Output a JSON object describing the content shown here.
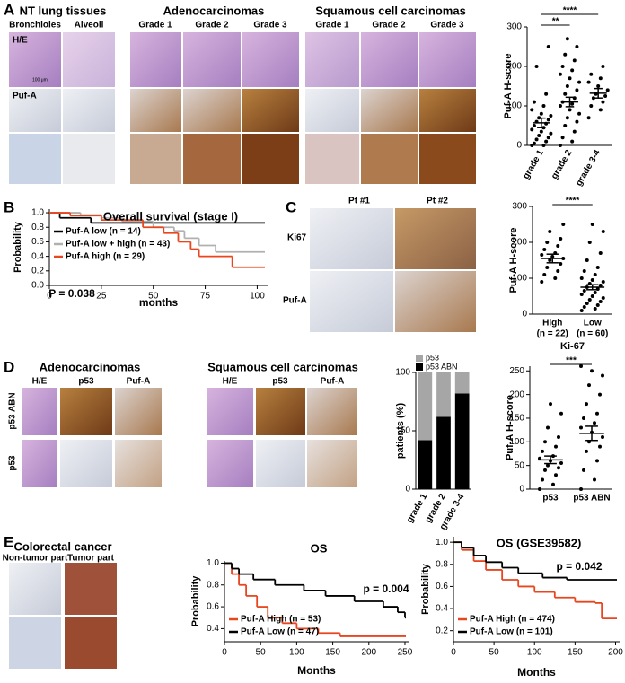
{
  "panel_labels": [
    "A",
    "B",
    "C",
    "D",
    "E"
  ],
  "panel_a": {
    "groups": [
      "NT lung tissues",
      "Adenocarcinomas",
      "Squamous cell carcinomas"
    ],
    "columns": [
      "Bronchioles",
      "Alveoli",
      "Grade 1",
      "Grade 2",
      "Grade 3",
      "Grade 1",
      "Grade 2",
      "Grade 3"
    ],
    "rows": [
      "H/E",
      "Puf-A"
    ],
    "scale_bar": "100 μm"
  },
  "panel_c": {
    "columns": [
      "Pt #1",
      "Pt #2"
    ],
    "rows": [
      "Ki67",
      "Puf-A"
    ]
  },
  "panel_d": {
    "groups": [
      "Adenocarcinomas",
      "Squamous cell carcinomas"
    ],
    "columns": [
      "H/E",
      "p53",
      "Puf-A",
      "H/E",
      "p53",
      "Puf-A"
    ],
    "rows": [
      "p53 ABN",
      "p53"
    ]
  },
  "panel_e": {
    "title": "Colorectal cancer",
    "columns": [
      "Non-tumor part",
      "Tumor part"
    ]
  },
  "chart_data": [
    {
      "type": "dotplot",
      "ylabel": "Puf-A H-score",
      "categories": [
        "grade 1",
        "grade 2",
        "grade 3-4"
      ],
      "points": [
        [
          0,
          0,
          5,
          10,
          15,
          20,
          25,
          30,
          35,
          40,
          45,
          50,
          55,
          60,
          65,
          70,
          75,
          80,
          90,
          100,
          110,
          130,
          200,
          250
        ],
        [
          0,
          10,
          20,
          35,
          50,
          60,
          70,
          80,
          90,
          100,
          105,
          110,
          120,
          130,
          140,
          150,
          160,
          170,
          180,
          190,
          200,
          215,
          230,
          250,
          270
        ],
        [
          70,
          90,
          100,
          110,
          120,
          125,
          130,
          140,
          150,
          160,
          170,
          180,
          200
        ]
      ],
      "means": [
        57,
        110,
        132
      ],
      "errors": [
        12,
        12,
        12
      ],
      "ylim": [
        0,
        300
      ],
      "yticks": [
        0,
        100,
        200,
        300
      ],
      "significance": [
        "**",
        "****"
      ],
      "color": "#000000"
    },
    {
      "type": "survival",
      "title": "Overall survival (stage I)",
      "xlabel": "months",
      "ylabel": "Probability",
      "annotation": "P = 0.038",
      "xlim": [
        0,
        105
      ],
      "xticks": [
        0,
        25,
        50,
        75,
        100
      ],
      "ylim": [
        0,
        1.05
      ],
      "yticks": [
        {
          "value": 0,
          "label": "0.0"
        },
        0.2,
        0.4,
        0.6,
        0.8,
        {
          "value": 1,
          "label": "1.0"
        }
      ],
      "series": [
        {
          "name": "Puf-A low (n = 14)",
          "color": "#000000",
          "x": [
            0,
            5,
            20
          ],
          "values": [
            1,
            0.93,
            0.86
          ]
        },
        {
          "name": "Puf-A low + high (n = 43)",
          "color": "#b0b0b0",
          "x": [
            0,
            15,
            25,
            35,
            50,
            60,
            65,
            72,
            80
          ],
          "values": [
            1,
            0.97,
            0.93,
            0.88,
            0.8,
            0.75,
            0.65,
            0.55,
            0.46
          ]
        },
        {
          "name": "Puf-A high (n = 29)",
          "color": "#e8461e",
          "x": [
            0,
            10,
            25,
            45,
            55,
            62,
            68,
            72,
            88
          ],
          "values": [
            1,
            0.96,
            0.9,
            0.8,
            0.72,
            0.6,
            0.5,
            0.4,
            0.25
          ]
        }
      ]
    },
    {
      "type": "dotplot",
      "ylabel": "Puf-A H-score",
      "xlabel": "Ki-67",
      "categories": [
        "High",
        "Low"
      ],
      "category_counts": [
        "(n = 22)",
        "(n = 60)"
      ],
      "points": [
        [
          90,
          100,
          110,
          120,
          130,
          140,
          150,
          155,
          160,
          165,
          170,
          180,
          190,
          200,
          210,
          230,
          250
        ],
        [
          10,
          15,
          20,
          25,
          30,
          35,
          40,
          45,
          50,
          55,
          60,
          65,
          70,
          75,
          80,
          85,
          90,
          95,
          100,
          110,
          120,
          130,
          150,
          170,
          200,
          230,
          250
        ]
      ],
      "means": [
        155,
        75
      ],
      "errors": [
        12,
        7
      ],
      "ylim": [
        0,
        300
      ],
      "yticks": [
        0,
        100,
        200,
        300
      ],
      "significance": [
        "****"
      ],
      "color": "#000000"
    },
    {
      "type": "stacked_bar",
      "ylabel": "patients (%)",
      "categories": [
        "grade 1",
        "grade 2",
        "grade 3-4"
      ],
      "ylim": [
        0,
        100
      ],
      "yticks": [
        0,
        50,
        100
      ],
      "series": [
        {
          "name": "p53 ABN",
          "color": "#000000",
          "values": [
            42,
            62,
            82
          ]
        },
        {
          "name": "p53",
          "color": "#a6a6a6",
          "values": [
            58,
            38,
            18
          ]
        }
      ]
    },
    {
      "type": "dotplot",
      "ylabel": "Puf-A H-score",
      "categories": [
        "p53",
        "p53 ABN"
      ],
      "points": [
        [
          0,
          10,
          20,
          30,
          40,
          45,
          50,
          55,
          60,
          65,
          70,
          80,
          90,
          100,
          110,
          130,
          160,
          180
        ],
        [
          0,
          20,
          40,
          60,
          80,
          90,
          100,
          110,
          120,
          130,
          140,
          150,
          160,
          180,
          200,
          220,
          240,
          250,
          260
        ]
      ],
      "means": [
        62,
        118
      ],
      "errors": [
        8,
        15
      ],
      "ylim": [
        0,
        260
      ],
      "yticks": [
        0,
        50,
        100,
        150,
        200,
        250
      ],
      "significance": [
        "***"
      ],
      "color": "#000000"
    },
    {
      "type": "survival",
      "title": "OS",
      "xlabel": "Months",
      "ylabel": "Probability",
      "annotation": "p = 0.004",
      "xlim": [
        0,
        255
      ],
      "xticks": [
        0,
        50,
        100,
        150,
        200,
        250
      ],
      "ylim": [
        0.28,
        1.02
      ],
      "yticks": [
        0.4,
        0.6,
        0.8,
        {
          "value": 1,
          "label": "1.0"
        }
      ],
      "series": [
        {
          "name": "Puf-A High (n = 53)",
          "color": "#e8461e",
          "x": [
            0,
            10,
            20,
            30,
            45,
            60,
            80,
            100,
            130,
            160
          ],
          "values": [
            1,
            0.9,
            0.8,
            0.7,
            0.6,
            0.5,
            0.45,
            0.4,
            0.36,
            0.33
          ]
        },
        {
          "name": "Puf-A Low (n = 47)",
          "color": "#000000",
          "x": [
            0,
            10,
            20,
            40,
            70,
            110,
            140,
            180,
            220,
            240,
            250
          ],
          "values": [
            1,
            0.95,
            0.9,
            0.85,
            0.8,
            0.75,
            0.7,
            0.65,
            0.6,
            0.55,
            0.5
          ]
        }
      ]
    },
    {
      "type": "survival",
      "title": "OS (GSE39582)",
      "xlabel": "Months",
      "ylabel": "Probability",
      "annotation": "p = 0.042",
      "xlim": [
        0,
        205
      ],
      "xticks": [
        0,
        50,
        100,
        150,
        200
      ],
      "ylim": [
        0.1,
        1.05
      ],
      "yticks": [
        0.2,
        0.4,
        0.6,
        0.8,
        {
          "value": 1,
          "label": "1.0"
        }
      ],
      "series": [
        {
          "name": "Puf-A High  (n = 474)",
          "color": "#e8461e",
          "x": [
            0,
            10,
            25,
            40,
            60,
            80,
            100,
            125,
            150,
            175,
            183
          ],
          "values": [
            1,
            0.93,
            0.83,
            0.75,
            0.66,
            0.6,
            0.55,
            0.5,
            0.46,
            0.45,
            0.31
          ]
        },
        {
          "name": "Puf-A Low  (n = 101)",
          "color": "#000000",
          "x": [
            0,
            10,
            25,
            40,
            60,
            80,
            110,
            140
          ],
          "values": [
            1,
            0.95,
            0.88,
            0.82,
            0.77,
            0.72,
            0.68,
            0.66
          ]
        }
      ]
    }
  ]
}
